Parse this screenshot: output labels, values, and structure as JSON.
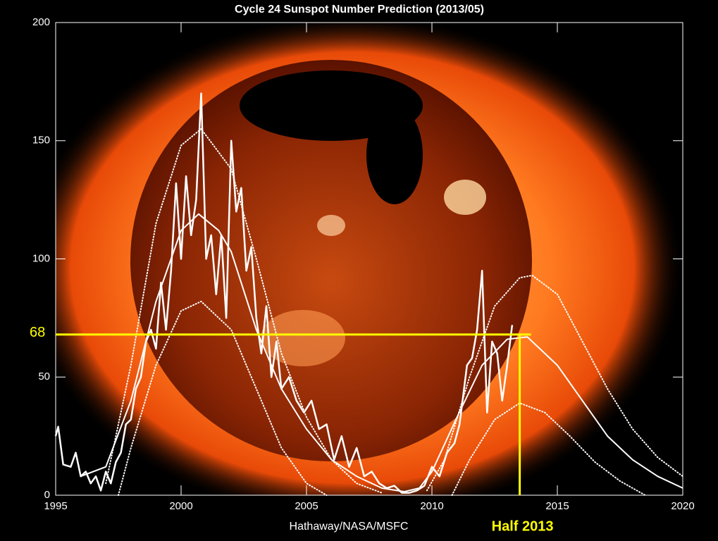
{
  "chart_data": {
    "type": "line",
    "title": "Cycle 24 Sunspot Number Prediction (2013/05)",
    "credit": "Hathaway/NASA/MSFC",
    "xlim": [
      1995,
      2020
    ],
    "xticks": [
      1995,
      2000,
      2005,
      2010,
      2015,
      2020
    ],
    "ylim": [
      0,
      200
    ],
    "yticks": [
      0,
      50,
      100,
      150,
      200
    ],
    "hline": {
      "y": 68,
      "color": "#ffff00"
    },
    "vline": {
      "x": 2013.5,
      "label": "Half 2013",
      "color": "#ffff00"
    },
    "series": [
      {
        "color": "#ffffff",
        "style": "solid",
        "width": 2.5,
        "x": [
          1995.0,
          1995.1,
          1995.3,
          1995.6,
          1995.8,
          1996.0,
          1996.2,
          1996.4,
          1996.6,
          1996.8,
          1997.0,
          1997.2,
          1997.4,
          1997.6,
          1997.8,
          1998.0,
          1998.2,
          1998.4,
          1998.6,
          1998.8,
          1999.0,
          1999.2,
          1999.4,
          1999.6,
          1999.8,
          2000.0,
          2000.2,
          2000.4,
          2000.6,
          2000.8,
          2001.0,
          2001.2,
          2001.4,
          2001.6,
          2001.8,
          2002.0,
          2002.2,
          2002.4,
          2002.6,
          2002.8,
          2003.0,
          2003.2,
          2003.4,
          2003.6,
          2003.8,
          2004.0,
          2004.3,
          2004.6,
          2004.9,
          2005.2,
          2005.5,
          2005.8,
          2006.1,
          2006.4,
          2006.7,
          2007.0,
          2007.3,
          2007.6,
          2007.9,
          2008.2,
          2008.5,
          2008.8,
          2009.1,
          2009.4,
          2009.7,
          2010.0,
          2010.3,
          2010.6,
          2010.9,
          2011.1,
          2011.4,
          2011.6,
          2011.8,
          2012.0,
          2012.2,
          2012.4,
          2012.6,
          2012.8,
          2013.0,
          2013.2
        ],
        "values": [
          25,
          29,
          13,
          12,
          18,
          8,
          10,
          5,
          8,
          2,
          10,
          5,
          14,
          18,
          30,
          32,
          45,
          50,
          65,
          70,
          62,
          90,
          70,
          95,
          132,
          100,
          135,
          110,
          125,
          170,
          100,
          110,
          85,
          110,
          75,
          150,
          120,
          130,
          95,
          105,
          75,
          60,
          80,
          50,
          65,
          45,
          50,
          40,
          35,
          40,
          28,
          30,
          15,
          25,
          12,
          20,
          8,
          10,
          5,
          3,
          4,
          1,
          1,
          2,
          4,
          12,
          8,
          18,
          22,
          30,
          55,
          58,
          70,
          95,
          35,
          65,
          60,
          40,
          55,
          72
        ]
      },
      {
        "color": "#ffffff",
        "style": "solid",
        "width": 2,
        "x": [
          1996,
          1997,
          1998,
          1999,
          2000,
          2000.7,
          2001.5,
          2002,
          2003,
          2004,
          2005,
          2006,
          2007,
          2008,
          2008.9,
          2009.5,
          2010,
          2011,
          2012,
          2013,
          2013.8,
          2015,
          2016,
          2017,
          2018,
          2019,
          2020
        ],
        "values": [
          8,
          12,
          40,
          82,
          112,
          119,
          112,
          103,
          70,
          45,
          28,
          15,
          8,
          3,
          1.5,
          3,
          10,
          33,
          55,
          66,
          67,
          55,
          40,
          25,
          15,
          8,
          3
        ]
      },
      {
        "color": "#ffffff",
        "style": "dotted",
        "width": 2,
        "x": [
          1997,
          1998,
          1999,
          2000,
          2000.8,
          2002,
          2003,
          2004,
          2005,
          2006,
          2007,
          2008,
          2009,
          2009.8,
          2010.5,
          2011.5,
          2012.5,
          2013.5,
          2014,
          2015,
          2016,
          2017,
          2018,
          2019,
          2020
        ],
        "values": [
          5,
          55,
          115,
          148,
          155,
          138,
          100,
          60,
          33,
          15,
          5,
          1,
          null,
          2,
          15,
          50,
          80,
          92,
          93,
          85,
          65,
          45,
          28,
          16,
          8
        ]
      },
      {
        "color": "#ffffff",
        "style": "dotted",
        "width": 2,
        "x": [
          1997.5,
          1998,
          1999,
          2000,
          2000.8,
          2002,
          2003,
          2004,
          2005,
          2005.8,
          2008,
          2010.8,
          2011.5,
          2012.5,
          2013.5,
          2014.5,
          2015.5,
          2016.5,
          2017.5,
          2018.5
        ],
        "values": [
          0,
          20,
          55,
          78,
          82,
          70,
          45,
          20,
          5,
          0,
          null,
          0,
          15,
          32,
          39,
          35,
          25,
          14,
          6,
          0
        ]
      }
    ]
  }
}
